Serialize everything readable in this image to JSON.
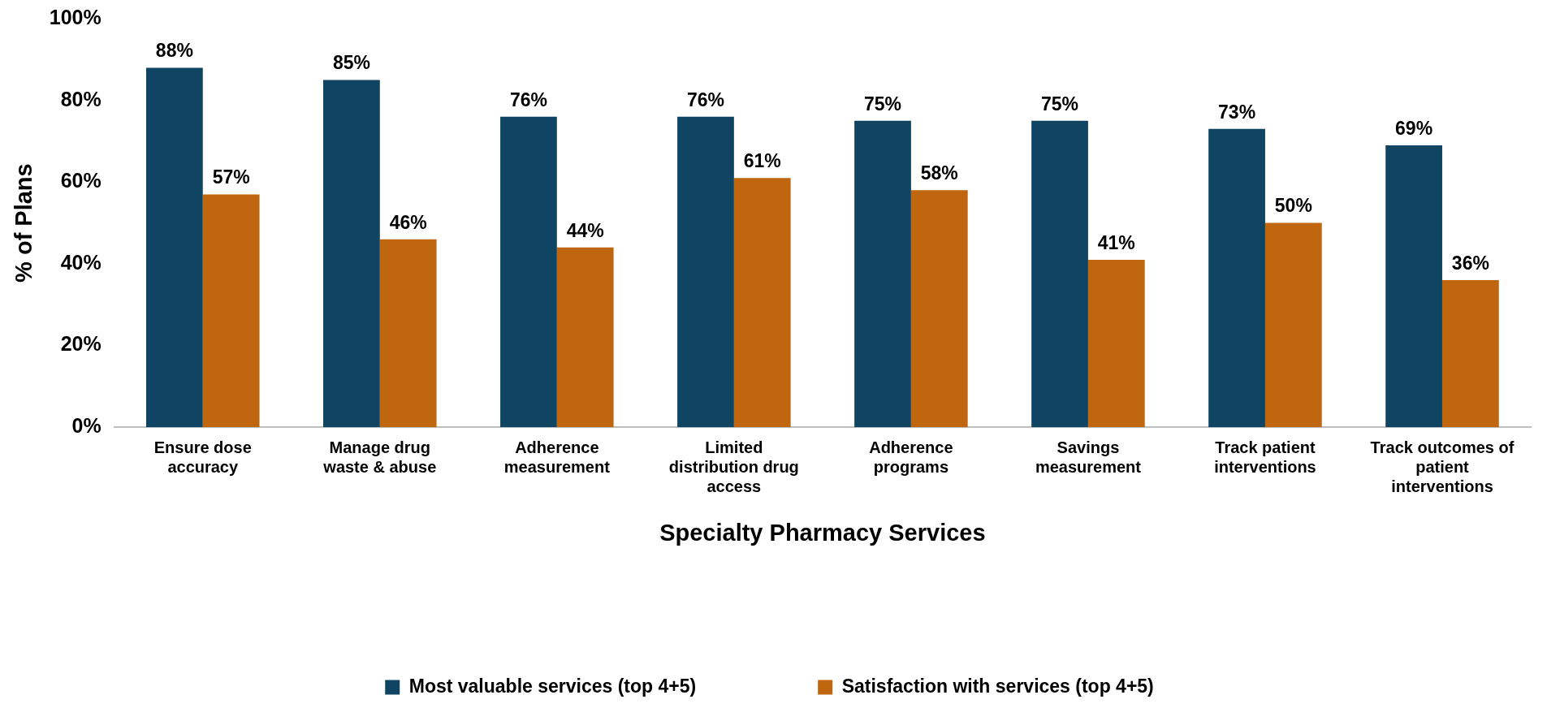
{
  "chart_data": {
    "type": "bar",
    "xlabel": "Specialty Pharmacy Services",
    "ylabel": "% of Plans",
    "categories": [
      "Ensure dose accuracy",
      "Manage drug waste & abuse",
      "Adherence measurement",
      "Limited distribution drug access",
      "Adherence programs",
      "Savings measurement",
      "Track patient interventions",
      "Track outcomes of patient interventions"
    ],
    "series": [
      {
        "name": "Most valuable services (top 4+5)",
        "color": "#0f4562",
        "values": [
          88,
          85,
          76,
          76,
          75,
          75,
          73,
          69
        ],
        "value_labels": [
          "88%",
          "85%",
          "76%",
          "76%",
          "75%",
          "75%",
          "73%",
          "69%"
        ]
      },
      {
        "name": "Satisfaction with services (top 4+5)",
        "color": "#c0660f",
        "values": [
          57,
          46,
          44,
          61,
          58,
          41,
          50,
          36
        ],
        "value_labels": [
          "57%",
          "46%",
          "44%",
          "61%",
          "58%",
          "41%",
          "50%",
          "36%"
        ]
      }
    ],
    "ylim": [
      0,
      100
    ],
    "yticks": [
      {
        "value": 0,
        "label": "0%"
      },
      {
        "value": 20,
        "label": "20%"
      },
      {
        "value": 40,
        "label": "40%"
      },
      {
        "value": 60,
        "label": "60%"
      },
      {
        "value": 80,
        "label": "80%"
      },
      {
        "value": 100,
        "label": "100%"
      }
    ],
    "grid": false,
    "legend": "bottom"
  }
}
